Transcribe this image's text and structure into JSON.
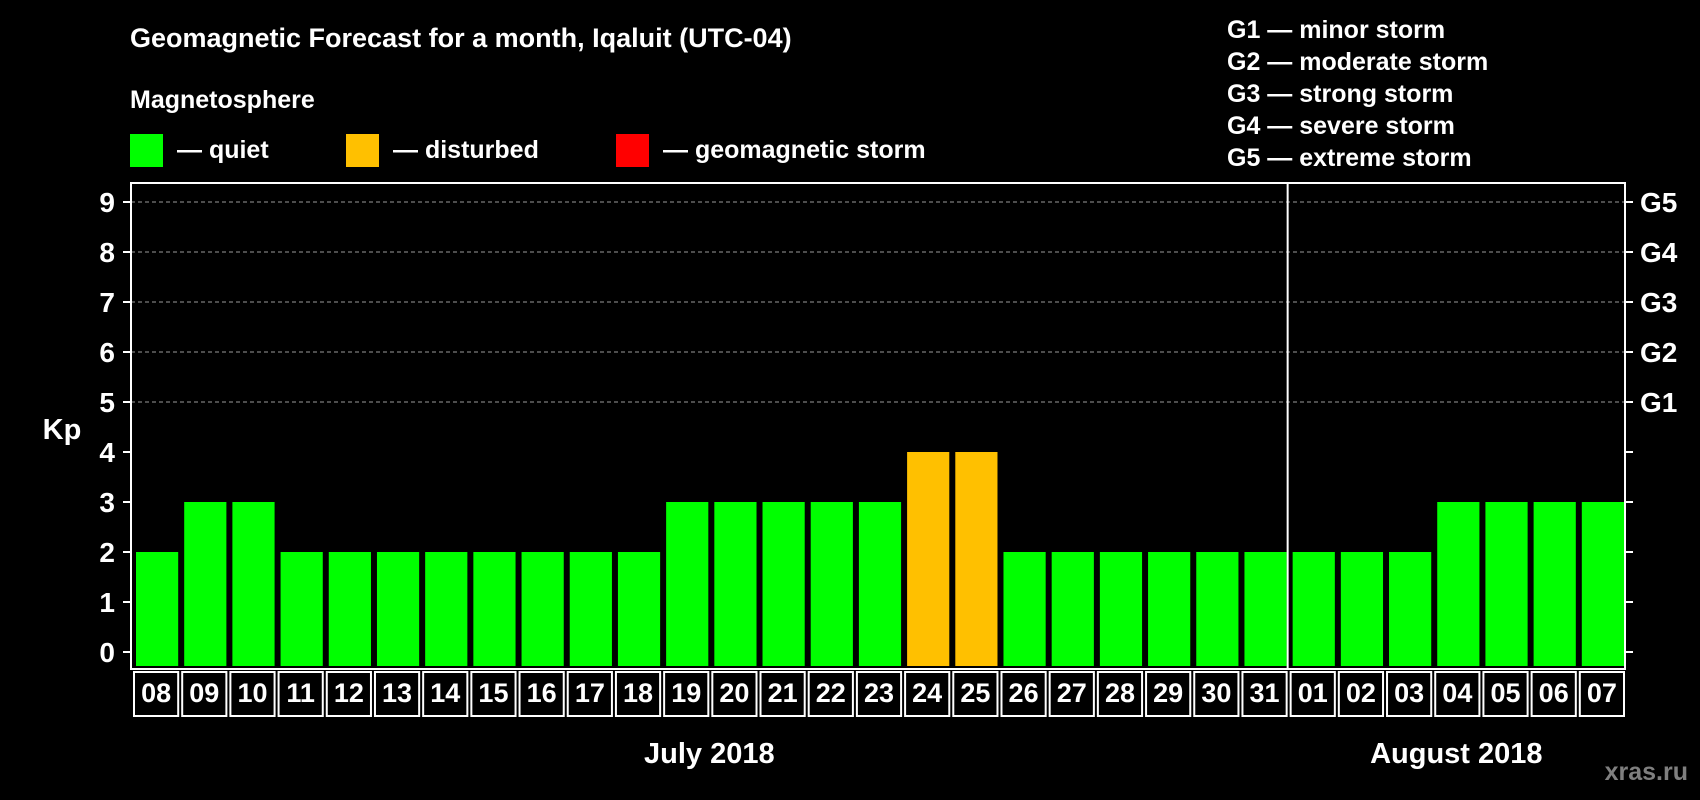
{
  "chart_data": {
    "type": "bar",
    "title": "Geomagnetic Forecast for a month, Iqaluit (UTC-04)",
    "ylabel": "Kp",
    "ylim": [
      0,
      9
    ],
    "yticks": [
      "0",
      "1",
      "2",
      "3",
      "4",
      "5",
      "6",
      "7",
      "8",
      "9"
    ],
    "gridlines": [
      5,
      6,
      7,
      8,
      9
    ],
    "legend": {
      "title": "Magnetosphere",
      "items": [
        {
          "label": "— quiet",
          "color": "#00ff00"
        },
        {
          "label": "— disturbed",
          "color": "#ffc000"
        },
        {
          "label": "— geomagnetic storm",
          "color": "#ff0000"
        }
      ]
    },
    "storm_scale": [
      {
        "level": "G1",
        "text": "G1 — minor storm",
        "kp": 5
      },
      {
        "level": "G2",
        "text": "G2 — moderate storm",
        "kp": 6
      },
      {
        "level": "G3",
        "text": "G3 — strong storm",
        "kp": 7
      },
      {
        "level": "G4",
        "text": "G4 — severe storm",
        "kp": 8
      },
      {
        "level": "G5",
        "text": "G5 — extreme storm",
        "kp": 9
      }
    ],
    "categories": [
      "08",
      "09",
      "10",
      "11",
      "12",
      "13",
      "14",
      "15",
      "16",
      "17",
      "18",
      "19",
      "20",
      "21",
      "22",
      "23",
      "24",
      "25",
      "26",
      "27",
      "28",
      "29",
      "30",
      "31",
      "01",
      "02",
      "03",
      "04",
      "05",
      "06",
      "07"
    ],
    "values": [
      2,
      3,
      3,
      2,
      2,
      2,
      2,
      2,
      2,
      2,
      2,
      3,
      3,
      3,
      3,
      3,
      4,
      4,
      2,
      2,
      2,
      2,
      2,
      2,
      2,
      2,
      2,
      3,
      3,
      3,
      3
    ],
    "colors": {
      "quiet": "#00ff00",
      "disturbed": "#ffc000",
      "storm": "#ff0000"
    },
    "months": [
      {
        "label": "July 2018",
        "start": 0,
        "end": 23
      },
      {
        "label": "August 2018",
        "start": 24,
        "end": 30
      }
    ],
    "watermark": "xras.ru"
  }
}
